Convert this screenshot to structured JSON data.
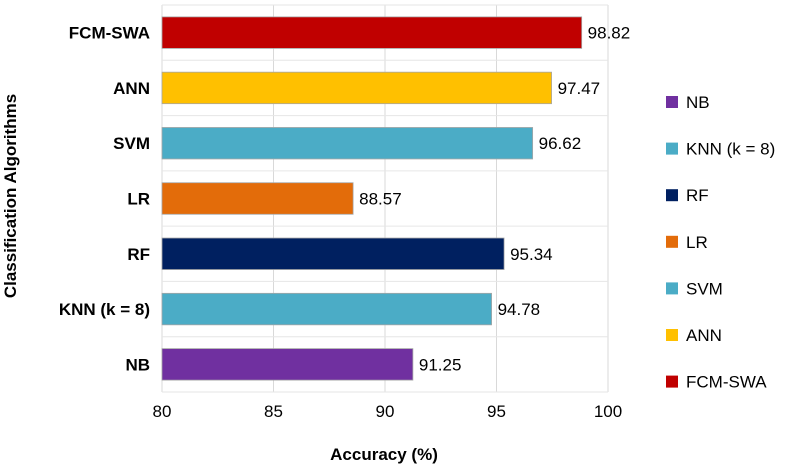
{
  "chart_data": {
    "type": "bar",
    "orientation": "horizontal",
    "categories": [
      "FCM-SWA",
      "ANN",
      "SVM",
      "LR",
      "RF",
      "KNN (k = 8)",
      "NB"
    ],
    "values": [
      98.82,
      97.47,
      96.62,
      88.57,
      95.34,
      94.78,
      91.25
    ],
    "value_labels": [
      "98.82",
      "97.47",
      "96.62",
      "88.57",
      "95.34",
      "94.78",
      "91.25"
    ],
    "colors": [
      "#c00000",
      "#ffc000",
      "#4bacc6",
      "#e36c0a",
      "#002060",
      "#4bacc6",
      "#7030a0"
    ],
    "xlabel": "Accuracy (%)",
    "ylabel": "Classification Algorithms",
    "xlim": [
      80,
      100
    ],
    "xticks": [
      "80",
      "85",
      "90",
      "95",
      "100"
    ],
    "grid": "vertical",
    "legend_position": "right",
    "legend": [
      {
        "name": "NB",
        "color": "#7030a0"
      },
      {
        "name": "KNN (k = 8)",
        "color": "#4bacc6"
      },
      {
        "name": "RF",
        "color": "#002060"
      },
      {
        "name": "LR",
        "color": "#e36c0a"
      },
      {
        "name": "SVM",
        "color": "#4bacc6"
      },
      {
        "name": "ANN",
        "color": "#ffc000"
      },
      {
        "name": "FCM-SWA",
        "color": "#c00000"
      }
    ]
  }
}
